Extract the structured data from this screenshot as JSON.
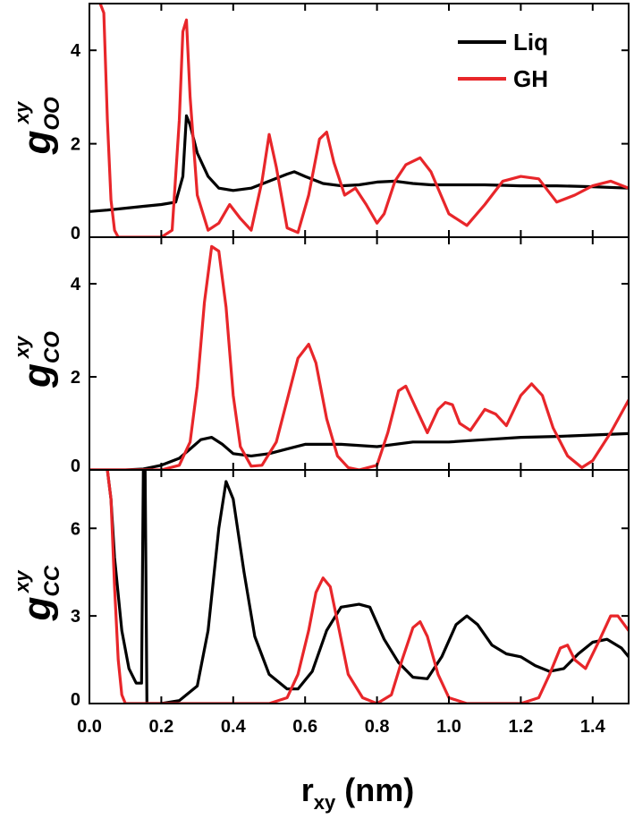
{
  "chart_data": {
    "type": "line",
    "xlabel": "r",
    "xlabel_sub": "xy",
    "xlabel_unit": " (nm)",
    "xlim": [
      0.0,
      1.5
    ],
    "xticks": [
      "0.0",
      "0.2",
      "0.4",
      "0.6",
      "0.8",
      "1.0",
      "1.2",
      "1.4"
    ],
    "legend": {
      "placement": "top-right",
      "entries": [
        {
          "label": "Liq",
          "color": "#000000"
        },
        {
          "label": "GH",
          "color": "#e8262a"
        }
      ]
    },
    "colors": {
      "Liq": "#000000",
      "GH": "#e8262a"
    },
    "panels": [
      {
        "ylabel": "g",
        "ylabel_sub": "OO",
        "ylabel_sup": "xy",
        "ylim": [
          0,
          5
        ],
        "yticks": [
          "0",
          "2",
          "4"
        ],
        "series": [
          {
            "name": "Liq",
            "x": [
              0.0,
              0.05,
              0.1,
              0.15,
              0.2,
              0.24,
              0.26,
              0.27,
              0.28,
              0.3,
              0.33,
              0.36,
              0.4,
              0.45,
              0.5,
              0.55,
              0.57,
              0.6,
              0.65,
              0.7,
              0.75,
              0.8,
              0.85,
              0.9,
              0.95,
              1.0,
              1.1,
              1.2,
              1.3,
              1.4,
              1.5
            ],
            "y": [
              0.55,
              0.58,
              0.62,
              0.66,
              0.7,
              0.75,
              1.3,
              2.6,
              2.4,
              1.8,
              1.3,
              1.05,
              1.0,
              1.05,
              1.2,
              1.35,
              1.4,
              1.3,
              1.15,
              1.1,
              1.12,
              1.18,
              1.2,
              1.15,
              1.12,
              1.12,
              1.12,
              1.1,
              1.1,
              1.08,
              1.05
            ]
          },
          {
            "name": "GH",
            "x": [
              0.03,
              0.04,
              0.05,
              0.06,
              0.07,
              0.08,
              0.1,
              0.15,
              0.2,
              0.23,
              0.25,
              0.26,
              0.27,
              0.28,
              0.3,
              0.33,
              0.36,
              0.39,
              0.42,
              0.45,
              0.48,
              0.5,
              0.52,
              0.55,
              0.58,
              0.61,
              0.64,
              0.66,
              0.68,
              0.71,
              0.74,
              0.77,
              0.8,
              0.82,
              0.85,
              0.88,
              0.92,
              0.95,
              1.0,
              1.05,
              1.1,
              1.15,
              1.2,
              1.25,
              1.3,
              1.35,
              1.4,
              1.45,
              1.5
            ],
            "y": [
              5.0,
              4.8,
              2.5,
              0.8,
              0.15,
              0.0,
              0.0,
              0.0,
              0.0,
              0.15,
              2.5,
              4.4,
              4.65,
              3.0,
              0.9,
              0.15,
              0.3,
              0.7,
              0.4,
              0.15,
              1.2,
              2.2,
              1.5,
              0.2,
              0.1,
              0.9,
              2.1,
              2.25,
              1.6,
              0.9,
              1.05,
              0.7,
              0.3,
              0.5,
              1.2,
              1.55,
              1.7,
              1.4,
              0.5,
              0.25,
              0.7,
              1.2,
              1.3,
              1.25,
              0.75,
              0.9,
              1.1,
              1.2,
              1.05
            ]
          }
        ]
      },
      {
        "ylabel": "g",
        "ylabel_sub": "CO",
        "ylabel_sup": "xy",
        "ylim": [
          0,
          5
        ],
        "yticks": [
          "0",
          "2",
          "4"
        ],
        "series": [
          {
            "name": "Liq",
            "x": [
              0.0,
              0.1,
              0.15,
              0.2,
              0.25,
              0.28,
              0.31,
              0.34,
              0.37,
              0.4,
              0.45,
              0.5,
              0.55,
              0.6,
              0.65,
              0.7,
              0.8,
              0.9,
              1.0,
              1.1,
              1.2,
              1.3,
              1.4,
              1.5
            ],
            "y": [
              0.0,
              0.0,
              0.02,
              0.1,
              0.25,
              0.45,
              0.65,
              0.7,
              0.55,
              0.35,
              0.3,
              0.35,
              0.45,
              0.55,
              0.55,
              0.55,
              0.5,
              0.6,
              0.6,
              0.65,
              0.7,
              0.72,
              0.75,
              0.78
            ]
          },
          {
            "name": "GH",
            "x": [
              0.0,
              0.2,
              0.25,
              0.28,
              0.3,
              0.32,
              0.34,
              0.36,
              0.38,
              0.4,
              0.42,
              0.45,
              0.48,
              0.52,
              0.55,
              0.58,
              0.61,
              0.63,
              0.66,
              0.69,
              0.72,
              0.75,
              0.8,
              0.83,
              0.86,
              0.88,
              0.91,
              0.94,
              0.97,
              0.99,
              1.01,
              1.03,
              1.06,
              1.1,
              1.13,
              1.16,
              1.2,
              1.23,
              1.26,
              1.29,
              1.33,
              1.37,
              1.4,
              1.45,
              1.5
            ],
            "y": [
              0.0,
              0.0,
              0.1,
              0.6,
              1.8,
              3.6,
              4.8,
              4.7,
              3.5,
              1.6,
              0.5,
              0.08,
              0.1,
              0.6,
              1.5,
              2.4,
              2.7,
              2.3,
              1.1,
              0.3,
              0.05,
              0.0,
              0.1,
              0.8,
              1.7,
              1.8,
              1.3,
              0.8,
              1.3,
              1.45,
              1.4,
              1.0,
              0.85,
              1.3,
              1.2,
              0.95,
              1.6,
              1.85,
              1.6,
              0.9,
              0.3,
              0.05,
              0.2,
              0.8,
              1.5
            ]
          }
        ]
      },
      {
        "ylabel": "g",
        "ylabel_sub": "CC",
        "ylabel_sup": "xy",
        "ylim": [
          0,
          8
        ],
        "yticks": [
          "0",
          "3",
          "6"
        ],
        "series": [
          {
            "name": "Liq",
            "x": [
              0.05,
              0.06,
              0.07,
              0.09,
              0.11,
              0.13,
              0.145,
              0.15,
              0.155,
              0.16,
              0.2,
              0.25,
              0.3,
              0.33,
              0.36,
              0.38,
              0.4,
              0.43,
              0.46,
              0.5,
              0.55,
              0.58,
              0.62,
              0.66,
              0.7,
              0.75,
              0.78,
              0.82,
              0.86,
              0.9,
              0.94,
              0.98,
              1.02,
              1.05,
              1.08,
              1.12,
              1.16,
              1.2,
              1.24,
              1.28,
              1.32,
              1.36,
              1.4,
              1.44,
              1.48,
              1.5
            ],
            "y": [
              8.0,
              7.0,
              5.0,
              2.5,
              1.2,
              0.7,
              0.7,
              8.0,
              8.0,
              0.0,
              0.0,
              0.1,
              0.6,
              2.5,
              6.0,
              7.6,
              7.0,
              4.5,
              2.3,
              1.0,
              0.5,
              0.5,
              1.1,
              2.5,
              3.3,
              3.4,
              3.3,
              2.2,
              1.4,
              0.9,
              0.85,
              1.6,
              2.7,
              3.0,
              2.7,
              2.0,
              1.7,
              1.6,
              1.3,
              1.1,
              1.2,
              1.7,
              2.1,
              2.2,
              1.9,
              1.6
            ]
          },
          {
            "name": "GH",
            "x": [
              0.05,
              0.06,
              0.07,
              0.08,
              0.09,
              0.1,
              0.15,
              0.2,
              0.3,
              0.4,
              0.5,
              0.55,
              0.58,
              0.61,
              0.63,
              0.65,
              0.67,
              0.69,
              0.72,
              0.76,
              0.8,
              0.84,
              0.87,
              0.9,
              0.92,
              0.94,
              0.97,
              1.0,
              1.05,
              1.1,
              1.15,
              1.2,
              1.25,
              1.28,
              1.31,
              1.33,
              1.35,
              1.38,
              1.42,
              1.45,
              1.47,
              1.5
            ],
            "y": [
              8.0,
              7.0,
              4.0,
              1.5,
              0.3,
              0.0,
              0.0,
              0.0,
              0.0,
              0.0,
              0.0,
              0.2,
              1.0,
              2.5,
              3.8,
              4.3,
              4.0,
              2.8,
              1.0,
              0.2,
              0.0,
              0.3,
              1.5,
              2.6,
              2.8,
              2.3,
              1.0,
              0.2,
              0.0,
              0.0,
              0.0,
              0.0,
              0.2,
              1.0,
              1.9,
              2.0,
              1.5,
              1.2,
              2.2,
              3.0,
              3.0,
              2.5
            ]
          }
        ]
      }
    ]
  }
}
